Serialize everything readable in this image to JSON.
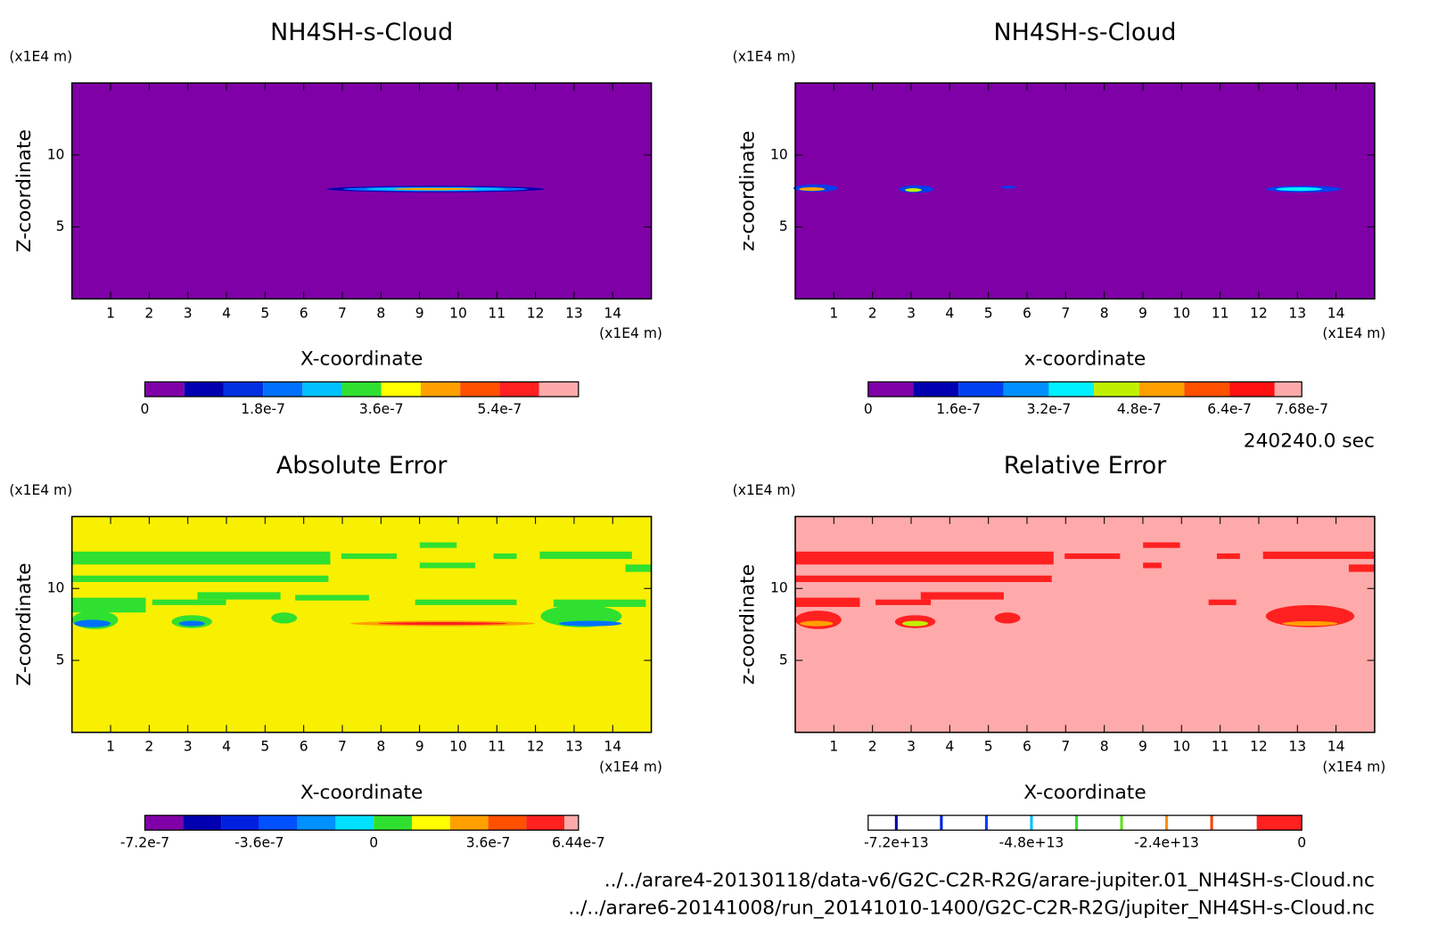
{
  "chart_data": [
    {
      "type": "contour",
      "title": "NH4SH-s-Cloud",
      "x_label": "X-coordinate",
      "y_label": "Z-coordinate",
      "x_unit": "(x1E4 m)",
      "y_unit": "(x1E4 m)",
      "xlim": [
        0,
        15
      ],
      "ylim": [
        0,
        15
      ],
      "xticks": [
        1,
        2,
        3,
        4,
        5,
        6,
        7,
        8,
        9,
        10,
        11,
        12,
        13,
        14
      ],
      "yticks": [
        5,
        10
      ],
      "background": "#8000a8",
      "colorbar": {
        "levels": [
          0,
          6e-08,
          1.2e-07,
          1.8e-07,
          2.4e-07,
          3e-07,
          3.6e-07,
          4.2e-07,
          4.8e-07,
          5.4e-07,
          6e-07,
          6.6e-07
        ],
        "colors": [
          "#8000a8",
          "#0000b0",
          "#0030e0",
          "#0070ff",
          "#00c0ff",
          "#30e030",
          "#ffff00",
          "#ffa000",
          "#ff5000",
          "#ff2020",
          "#ffaaaa"
        ],
        "ticks": [
          0,
          1.8e-07,
          3.6e-07,
          5.4e-07
        ]
      }
    },
    {
      "type": "contour",
      "title": "NH4SH-s-Cloud",
      "x_label": "x-coordinate",
      "y_label": "z-coordinate",
      "x_unit": "(x1E4 m)",
      "y_unit": "(x1E4 m)",
      "xlim": [
        0,
        15
      ],
      "ylim": [
        0,
        15
      ],
      "xticks": [
        1,
        2,
        3,
        4,
        5,
        6,
        7,
        8,
        9,
        10,
        11,
        12,
        13,
        14
      ],
      "yticks": [
        5,
        10
      ],
      "background": "#8000a8",
      "colorbar": {
        "levels": [
          0,
          8e-08,
          1.6e-07,
          2.4e-07,
          3.2e-07,
          4e-07,
          4.8e-07,
          5.6e-07,
          6.4e-07,
          7.2e-07,
          7.68e-07
        ],
        "colors": [
          "#8000a8",
          "#0000b0",
          "#0040f0",
          "#0090ff",
          "#00f0ff",
          "#c0f000",
          "#ffa000",
          "#ff5000",
          "#ff1010",
          "#ffaaaa"
        ],
        "ticks": [
          0,
          1.6e-07,
          3.2e-07,
          4.8e-07,
          6.4e-07,
          7.68e-07
        ]
      }
    },
    {
      "type": "contour",
      "title": "Absolute Error",
      "x_label": "X-coordinate",
      "y_label": "Z-coordinate",
      "x_unit": "(x1E4 m)",
      "y_unit": "(x1E4 m)",
      "xlim": [
        0,
        15
      ],
      "ylim": [
        0,
        15
      ],
      "xticks": [
        1,
        2,
        3,
        4,
        5,
        6,
        7,
        8,
        9,
        10,
        11,
        12,
        13,
        14
      ],
      "yticks": [
        5,
        10
      ],
      "background": "#f8f000",
      "colorbar": {
        "levels": [
          -7.2e-07,
          -6e-07,
          -4.8e-07,
          -3.6e-07,
          -2.4e-07,
          -1.2e-07,
          0,
          1.2e-07,
          2.4e-07,
          3.6e-07,
          4.8e-07,
          6e-07,
          6.44e-07
        ],
        "colors": [
          "#8000a8",
          "#0000b0",
          "#0020e0",
          "#0050ff",
          "#0090ff",
          "#00e0ff",
          "#30e030",
          "#ffff00",
          "#ffa000",
          "#ff5000",
          "#ff2020",
          "#ffaaaa"
        ],
        "ticks": [
          -7.2e-07,
          -3.6e-07,
          0,
          3.6e-07,
          6.44e-07
        ]
      }
    },
    {
      "type": "contour",
      "title": "Relative Error",
      "x_label": "X-coordinate",
      "y_label": "z-coordinate",
      "x_unit": "(x1E4 m)",
      "y_unit": "(x1E4 m)",
      "xlim": [
        0,
        15
      ],
      "ylim": [
        0,
        15
      ],
      "xticks": [
        1,
        2,
        3,
        4,
        5,
        6,
        7,
        8,
        9,
        10,
        11,
        12,
        13,
        14
      ],
      "yticks": [
        5,
        10
      ],
      "background": "#ffaaaa",
      "colorbar": {
        "levels": [
          -77000000000000.0,
          -8000000000000.0,
          0
        ],
        "colors": [
          "#ffffff",
          "#ff2020"
        ],
        "lines": [
          {
            "value": -72000000000000.0,
            "color": "#0000b0"
          },
          {
            "value": -64000000000000.0,
            "color": "#0020e0"
          },
          {
            "value": -56000000000000.0,
            "color": "#0040ff"
          },
          {
            "value": -48000000000000.0,
            "color": "#00c0ff"
          },
          {
            "value": -40000000000000.0,
            "color": "#30e030"
          },
          {
            "value": -32000000000000.0,
            "color": "#60e020"
          },
          {
            "value": -24000000000000.0,
            "color": "#ff9000"
          },
          {
            "value": -16000000000000.0,
            "color": "#ff4000"
          }
        ],
        "ticks": [
          {
            "value": -72000000000000.0,
            "label": "-7.2e+13"
          },
          {
            "value": -48000000000000.0,
            "label": "-4.8e+13"
          },
          {
            "value": -24000000000000.0,
            "label": "-2.4e+13"
          },
          0
        ]
      }
    }
  ],
  "time_label": "240240.0 sec",
  "files": [
    "../../arare4-20130118/data-v6/G2C-C2R-R2G/arare-jupiter.01_NH4SH-s-Cloud.nc",
    "../../arare6-20141008/run_20141010-1400/G2C-C2R-R2G/jupiter_NH4SH-s-Cloud.nc"
  ]
}
